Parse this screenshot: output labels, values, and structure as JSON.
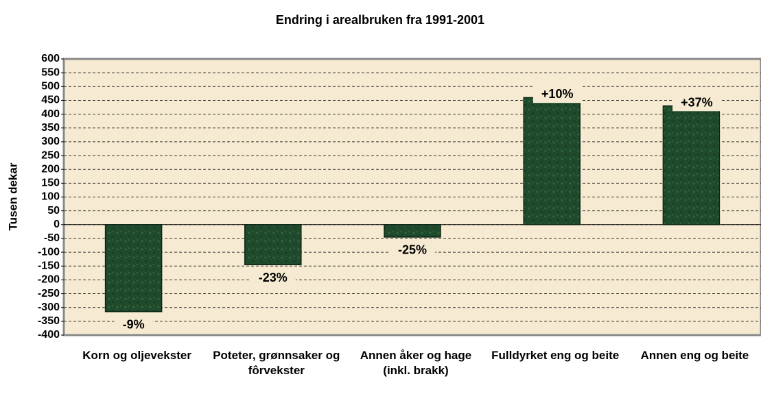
{
  "chart_data": {
    "type": "bar",
    "title": "Endring i arealbruken fra 1991-2001",
    "y_label": "Tusen dekar",
    "categories": [
      "Korn og oljevekster",
      "Poteter, grønnsaker og fôrvekster",
      "Annen åker og hage (inkl. brakk)",
      "Fulldyrket eng og beite",
      "Annen eng og beite"
    ],
    "values": [
      -315,
      -145,
      -45,
      460,
      430
    ],
    "bar_labels": [
      "-9%",
      "-23%",
      "-25%",
      "+10%",
      "+37%"
    ],
    "color": "#1f4a2c",
    "ylim": [
      -400,
      600
    ],
    "yticks": [
      -400,
      -350,
      -300,
      -250,
      -200,
      -150,
      -100,
      -50,
      0,
      50,
      100,
      150,
      200,
      250,
      300,
      350,
      400,
      450,
      500,
      550,
      600
    ],
    "grid": true
  }
}
